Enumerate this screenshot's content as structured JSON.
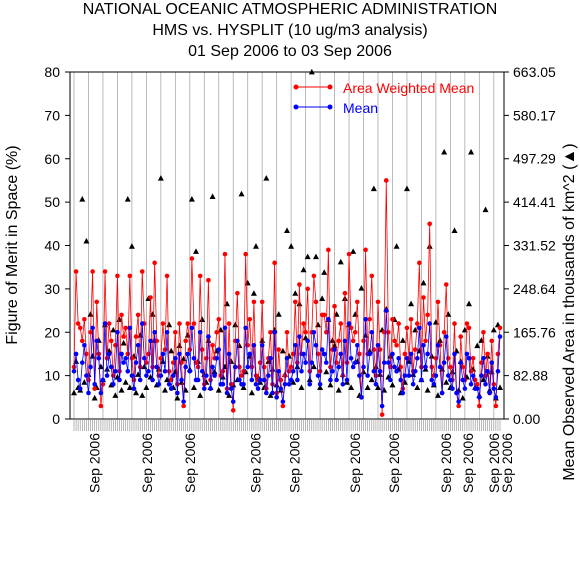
{
  "chart_data": {
    "type": "line",
    "title_lines": [
      "NATIONAL OCEANIC ATMOSPHERIC ADMINISTRATION",
      "HMS vs. HYSPLIT (10 ug/m3 analysis)",
      "01 Sep 2006 to 03 Sep 2006"
    ],
    "ylabel": "Figure of Merit in Space (%)",
    "y2label": "Mean Observed Area in thousands of km^2 (▲)",
    "ylim": [
      0,
      80
    ],
    "y2lim": [
      0,
      663.05
    ],
    "y_ticks": [
      "0",
      "10",
      "20",
      "30",
      "40",
      "50",
      "60",
      "70",
      "80"
    ],
    "y2_ticks": [
      "0.00",
      "82.88",
      "165.76",
      "248.64",
      "331.52",
      "414.41",
      "497.29",
      "580.17",
      "663.05"
    ],
    "x_tick_labels": [
      "Sep 2006",
      "Sep 2006",
      "Sep 2006",
      "Sep 2006",
      "Sep 2006",
      "Sep 2006",
      "Sep 2006",
      "Sep 2006",
      "Sep 2006",
      "Sep 2006",
      "Sep 2006"
    ],
    "x_tick_fracs": [
      0.05,
      0.17,
      0.27,
      0.42,
      0.51,
      0.65,
      0.74,
      0.86,
      0.91,
      0.97,
      1.0
    ],
    "legend": {
      "placement": "top-right"
    },
    "colors": {
      "awm": "#ff0000",
      "mean": "#0000ff",
      "area": "#000000",
      "grid": "#aaaaaa"
    },
    "series": [
      {
        "name": "Area Weighted Mean",
        "color": "#ff0000",
        "values": [
          12,
          34,
          22,
          21,
          18,
          23,
          15,
          9,
          20,
          34,
          7,
          27,
          15,
          3,
          8,
          34,
          14,
          22,
          18,
          10,
          17,
          33,
          11,
          24,
          19,
          21,
          15,
          33,
          14,
          9,
          19,
          24,
          12,
          34,
          22,
          13,
          15,
          28,
          12,
          36,
          18,
          10,
          14,
          22,
          16,
          33,
          11,
          9,
          13,
          20,
          8,
          22,
          13,
          3,
          18,
          22,
          16,
          37,
          22,
          13,
          12,
          33,
          16,
          8,
          14,
          32,
          9,
          17,
          14,
          20,
          23,
          10,
          11,
          38,
          7,
          22,
          8,
          2,
          18,
          29,
          12,
          10,
          11,
          38,
          17,
          23,
          12,
          27,
          10,
          9,
          13,
          27,
          12,
          7,
          14,
          20,
          8,
          36,
          6,
          16,
          9,
          3,
          10,
          20,
          11,
          12,
          15,
          27,
          13,
          31,
          15,
          22,
          20,
          30,
          11,
          20,
          33,
          27,
          15,
          11,
          24,
          24,
          20,
          39,
          12,
          16,
          26,
          13,
          18,
          22,
          10,
          29,
          13,
          38,
          21,
          18,
          20,
          27,
          15,
          5,
          18,
          39,
          15,
          23,
          33,
          16,
          10,
          27,
          16,
          1,
          20,
          55,
          20,
          12,
          23,
          18,
          17,
          22,
          12,
          7,
          15,
          21,
          14,
          23,
          11,
          16,
          22,
          36,
          12,
          28,
          18,
          24,
          45,
          12,
          10,
          14,
          27,
          17,
          6,
          20,
          31,
          14,
          12,
          9,
          22,
          6,
          3,
          19,
          12,
          9,
          22,
          21,
          11,
          14,
          9,
          8,
          3,
          13,
          20,
          10,
          15,
          6,
          18,
          8,
          3,
          15,
          21
        ]
      },
      {
        "name": "Mean",
        "color": "#0000ff",
        "values": [
          11,
          15,
          9,
          7,
          13,
          17,
          10,
          6,
          12,
          21,
          8,
          18,
          14,
          6,
          9,
          22,
          10,
          15,
          12,
          8,
          11,
          20,
          9,
          15,
          13,
          14,
          11,
          21,
          10,
          7,
          13,
          17,
          9,
          22,
          14,
          10,
          11,
          18,
          9,
          20,
          12,
          8,
          10,
          15,
          11,
          20,
          8,
          7,
          10,
          14,
          6,
          15,
          9,
          4,
          12,
          15,
          11,
          21,
          14,
          9,
          9,
          20,
          11,
          7,
          10,
          19,
          7,
          12,
          10,
          14,
          16,
          8,
          8,
          21,
          6,
          15,
          7,
          4,
          12,
          18,
          9,
          8,
          8,
          21,
          12,
          15,
          9,
          17,
          8,
          7,
          9,
          17,
          9,
          6,
          10,
          14,
          6,
          20,
          5,
          11,
          7,
          4,
          8,
          14,
          8,
          9,
          11,
          17,
          9,
          19,
          11,
          15,
          13,
          18,
          8,
          13,
          20,
          17,
          10,
          8,
          16,
          15,
          13,
          23,
          9,
          11,
          16,
          9,
          12,
          15,
          8,
          18,
          9,
          22,
          14,
          12,
          13,
          17,
          10,
          5,
          12,
          23,
          10,
          15,
          20,
          11,
          8,
          17,
          11,
          3,
          13,
          25,
          13,
          9,
          15,
          12,
          11,
          14,
          9,
          6,
          10,
          14,
          10,
          15,
          8,
          11,
          14,
          21,
          9,
          17,
          12,
          15,
          22,
          9,
          8,
          10,
          17,
          12,
          6,
          13,
          19,
          10,
          9,
          7,
          15,
          6,
          4,
          13,
          9,
          7,
          15,
          14,
          8,
          10,
          7,
          7,
          5,
          10,
          14,
          8,
          11,
          6,
          13,
          7,
          5,
          11,
          19
        ]
      },
      {
        "name": "Mean Observed Area",
        "marker": "triangle",
        "axis": "right",
        "values": [
          50,
          110,
          60,
          55,
          420,
          70,
          340,
          85,
          200,
          120,
          40,
          60,
          150,
          100,
          75,
          180,
          95,
          130,
          65,
          170,
          45,
          80,
          190,
          55,
          145,
          70,
          420,
          60,
          330,
          120,
          50,
          85,
          160,
          45,
          100,
          60,
          230,
          80,
          200,
          150,
          65,
          95,
          460,
          110,
          55,
          75,
          180,
          130,
          60,
          90,
          40,
          140,
          70,
          115,
          55,
          160,
          95,
          420,
          60,
          320,
          110,
          45,
          190,
          85,
          70,
          150,
          60,
          425,
          90,
          130,
          55,
          170,
          80,
          100,
          220,
          45,
          110,
          65,
          180,
          75,
          140,
          430,
          60,
          90,
          260,
          120,
          50,
          240,
          330,
          80,
          70,
          150,
          60,
          460,
          110,
          45,
          95,
          170,
          65,
          200,
          55,
          130,
          85,
          360,
          120,
          330,
          70,
          240,
          100,
          220,
          60,
          285,
          155,
          310,
          75,
          663,
          100,
          310,
          180,
          60,
          230,
          280,
          90,
          190,
          65,
          150,
          140,
          200,
          55,
          300,
          85,
          230,
          70,
          180,
          60,
          320,
          200,
          110,
          45,
          250,
          90,
          160,
          60,
          130,
          75,
          440,
          100,
          60,
          85,
          170,
          55,
          210,
          80,
          120,
          65,
          190,
          330,
          95,
          50,
          150,
          70,
          440,
          110,
          220,
          85,
          170,
          60,
          130,
          75,
          260,
          95,
          55,
          330,
          120,
          65,
          185,
          45,
          150,
          95,
          510,
          70,
          200,
          60,
          90,
          360,
          130,
          55,
          110,
          40,
          170,
          80,
          220,
          510,
          95,
          60,
          140,
          45,
          150,
          75,
          400,
          120,
          55,
          90,
          170,
          40,
          180,
          60
        ]
      }
    ]
  }
}
